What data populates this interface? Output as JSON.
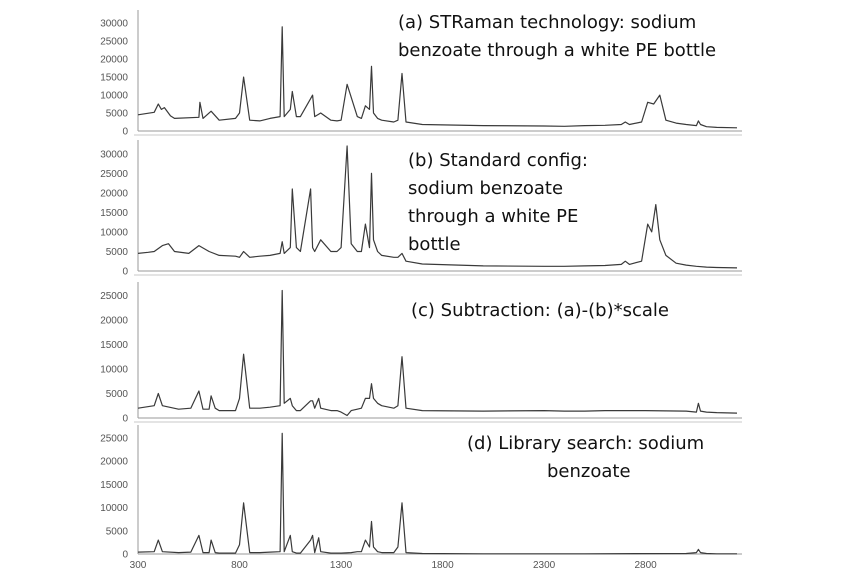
{
  "figure": {
    "x_tick_labels": [
      "300",
      "800",
      "1300",
      "1800",
      "2300",
      "2800"
    ],
    "x_ticks": [
      300,
      800,
      1300,
      1800,
      2300,
      2800
    ],
    "xlim": [
      300,
      3250
    ]
  },
  "chart_data": [
    {
      "type": "line",
      "annotation_lines": [
        "(a) STRaman technology: sodium",
        "benzoate through a white PE bottle"
      ],
      "ylim": [
        0,
        32000
      ],
      "y_ticks": [
        0,
        5000,
        10000,
        15000,
        20000,
        25000,
        30000
      ],
      "y_tick_labels": [
        "0",
        "5000",
        "10000",
        "15000",
        "20000",
        "25000",
        "30000"
      ],
      "x": [
        300,
        380,
        400,
        415,
        430,
        460,
        480,
        600,
        605,
        620,
        660,
        700,
        780,
        800,
        820,
        850,
        900,
        950,
        1000,
        1010,
        1020,
        1050,
        1060,
        1080,
        1100,
        1150,
        1160,
        1170,
        1200,
        1250,
        1280,
        1300,
        1330,
        1380,
        1400,
        1420,
        1440,
        1450,
        1460,
        1480,
        1500,
        1560,
        1580,
        1600,
        1620,
        1700,
        2000,
        2300,
        2400,
        2500,
        2600,
        2680,
        2700,
        2720,
        2780,
        2810,
        2840,
        2870,
        2900,
        2950,
        3000,
        3050,
        3060,
        3070,
        3100,
        3150,
        3250
      ],
      "values": [
        4500,
        5200,
        7500,
        6000,
        6500,
        4200,
        3500,
        3800,
        8000,
        3500,
        5500,
        3000,
        3500,
        5000,
        15000,
        3000,
        2800,
        3500,
        4000,
        29000,
        4000,
        6000,
        11000,
        4000,
        4000,
        9000,
        10000,
        4000,
        5000,
        3000,
        2800,
        3000,
        13000,
        4000,
        3500,
        7000,
        6000,
        18000,
        5000,
        3500,
        3000,
        2500,
        3000,
        16000,
        2500,
        1800,
        1500,
        1400,
        1300,
        1500,
        1600,
        1800,
        2500,
        1800,
        2500,
        8000,
        7500,
        10000,
        3000,
        2200,
        1800,
        1500,
        2800,
        1800,
        1200,
        1000,
        900
      ]
    },
    {
      "type": "line",
      "annotation_lines": [
        "(b) Standard config:",
        "sodium benzoate",
        "through a white PE",
        "bottle"
      ],
      "ylim": [
        0,
        32000
      ],
      "y_ticks": [
        0,
        5000,
        10000,
        15000,
        20000,
        25000,
        30000
      ],
      "y_tick_labels": [
        "0",
        "5000",
        "10000",
        "15000",
        "20000",
        "25000",
        "30000"
      ],
      "x": [
        300,
        350,
        380,
        420,
        450,
        480,
        550,
        600,
        650,
        700,
        780,
        800,
        820,
        850,
        900,
        950,
        1000,
        1010,
        1020,
        1050,
        1060,
        1080,
        1100,
        1150,
        1160,
        1170,
        1200,
        1250,
        1280,
        1300,
        1330,
        1350,
        1380,
        1400,
        1420,
        1440,
        1450,
        1460,
        1480,
        1500,
        1560,
        1580,
        1600,
        1620,
        1700,
        2000,
        2300,
        2400,
        2500,
        2600,
        2680,
        2700,
        2720,
        2780,
        2810,
        2830,
        2850,
        2870,
        2900,
        2950,
        3000,
        3050,
        3100,
        3150,
        3250
      ],
      "values": [
        4500,
        4800,
        5000,
        6500,
        7000,
        5000,
        4500,
        6500,
        5000,
        4000,
        3800,
        3500,
        5000,
        3500,
        3800,
        4000,
        4500,
        7500,
        4500,
        6000,
        21000,
        6000,
        5000,
        21000,
        6000,
        5000,
        8000,
        5000,
        5000,
        6000,
        32000,
        7000,
        5000,
        5000,
        12000,
        6000,
        25000,
        8000,
        5000,
        4000,
        3500,
        3500,
        4500,
        2500,
        1800,
        1300,
        1200,
        1200,
        1300,
        1400,
        1700,
        2500,
        1700,
        2500,
        12000,
        10000,
        17000,
        8000,
        4000,
        2000,
        1500,
        1200,
        1000,
        900,
        800
      ]
    },
    {
      "type": "line",
      "annotation_lines": [
        "(c) Subtraction: (a)-(b)*scale"
      ],
      "ylim": [
        0,
        26500
      ],
      "y_ticks": [
        0,
        5000,
        10000,
        15000,
        20000,
        25000
      ],
      "y_tick_labels": [
        "0",
        "5000",
        "10000",
        "15000",
        "20000",
        "25000"
      ],
      "x": [
        300,
        380,
        400,
        420,
        500,
        560,
        600,
        620,
        650,
        660,
        680,
        700,
        780,
        800,
        820,
        850,
        900,
        950,
        1000,
        1010,
        1020,
        1050,
        1060,
        1080,
        1100,
        1150,
        1160,
        1170,
        1190,
        1200,
        1250,
        1280,
        1300,
        1330,
        1350,
        1380,
        1400,
        1420,
        1440,
        1450,
        1460,
        1480,
        1500,
        1560,
        1580,
        1600,
        1620,
        1700,
        2000,
        2300,
        2400,
        2500,
        2600,
        2800,
        3000,
        3050,
        3060,
        3070,
        3100,
        3150,
        3250
      ],
      "values": [
        2000,
        2500,
        5000,
        2500,
        1800,
        2000,
        5500,
        1800,
        1800,
        4500,
        2000,
        1500,
        1500,
        4000,
        13000,
        2000,
        2000,
        2200,
        2500,
        26000,
        3000,
        4000,
        2500,
        1500,
        1500,
        3500,
        3500,
        2000,
        4000,
        2000,
        1500,
        1500,
        1200,
        500,
        1500,
        1800,
        2000,
        4000,
        4000,
        7000,
        4000,
        3000,
        2500,
        2000,
        2500,
        12500,
        2000,
        1500,
        1400,
        1500,
        1400,
        1400,
        1500,
        1500,
        1400,
        1200,
        3000,
        1400,
        1200,
        1100,
        1000
      ]
    },
    {
      "type": "line",
      "annotation_lines": [
        "(d) Library search: sodium",
        "benzoate"
      ],
      "ylim": [
        0,
        26500
      ],
      "y_ticks": [
        0,
        5000,
        10000,
        15000,
        20000,
        25000
      ],
      "y_tick_labels": [
        "0",
        "5000",
        "10000",
        "15000",
        "20000",
        "25000"
      ],
      "x": [
        300,
        380,
        400,
        420,
        500,
        560,
        600,
        620,
        650,
        660,
        680,
        700,
        780,
        800,
        820,
        850,
        900,
        950,
        1000,
        1010,
        1020,
        1050,
        1060,
        1080,
        1100,
        1150,
        1160,
        1170,
        1190,
        1200,
        1250,
        1280,
        1300,
        1350,
        1380,
        1400,
        1420,
        1440,
        1450,
        1460,
        1480,
        1500,
        1560,
        1580,
        1600,
        1620,
        1700,
        2000,
        2500,
        3000,
        3050,
        3060,
        3070,
        3100,
        3150,
        3250
      ],
      "values": [
        400,
        500,
        3000,
        500,
        300,
        400,
        4000,
        300,
        300,
        3000,
        300,
        200,
        200,
        2000,
        11000,
        300,
        300,
        400,
        500,
        26000,
        500,
        4000,
        500,
        200,
        200,
        3000,
        4000,
        300,
        3500,
        500,
        200,
        200,
        200,
        300,
        500,
        500,
        3000,
        1500,
        7000,
        1500,
        500,
        300,
        300,
        1500,
        11000,
        300,
        100,
        50,
        50,
        100,
        300,
        1000,
        300,
        100,
        50,
        50
      ]
    }
  ]
}
